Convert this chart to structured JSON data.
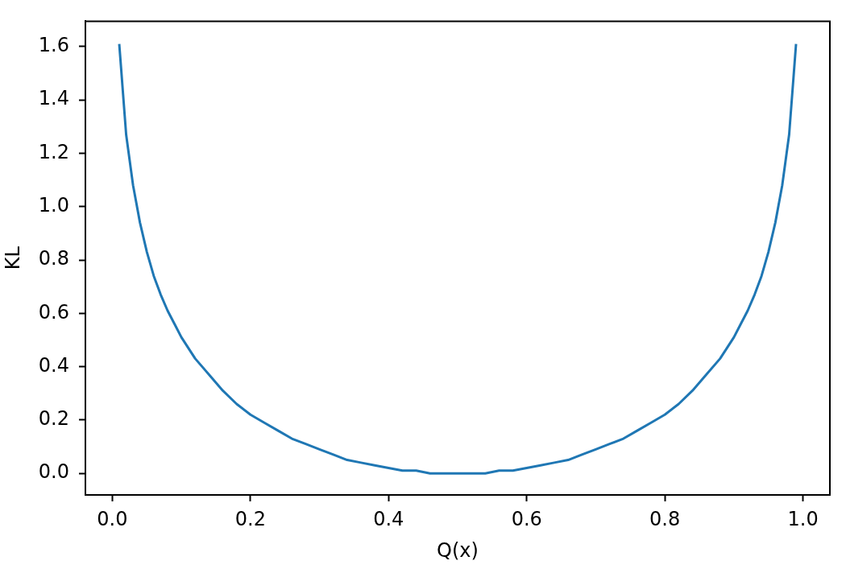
{
  "chart_data": {
    "type": "line",
    "xlabel": "Q(x)",
    "ylabel": "KL",
    "x": [
      0.01,
      0.02,
      0.03,
      0.04,
      0.05,
      0.06,
      0.07,
      0.08,
      0.09,
      0.1,
      0.12,
      0.14,
      0.16,
      0.18,
      0.2,
      0.22,
      0.24,
      0.26,
      0.28,
      0.3,
      0.32,
      0.34,
      0.36,
      0.38,
      0.4,
      0.42,
      0.44,
      0.46,
      0.48,
      0.5,
      0.52,
      0.54,
      0.56,
      0.58,
      0.6,
      0.62,
      0.64,
      0.66,
      0.68,
      0.7,
      0.72,
      0.74,
      0.76,
      0.78,
      0.8,
      0.82,
      0.84,
      0.86,
      0.88,
      0.9,
      0.91,
      0.92,
      0.93,
      0.94,
      0.95,
      0.96,
      0.97,
      0.98,
      0.99
    ],
    "series": [
      {
        "color": "#1f77b4",
        "values": [
          1.61,
          1.27,
          1.08,
          0.94,
          0.83,
          0.74,
          0.67,
          0.61,
          0.56,
          0.51,
          0.43,
          0.37,
          0.31,
          0.26,
          0.22,
          0.19,
          0.16,
          0.13,
          0.11,
          0.09,
          0.07,
          0.05,
          0.04,
          0.03,
          0.02,
          0.01,
          0.01,
          0,
          0,
          0,
          0,
          0,
          0.01,
          0.01,
          0.02,
          0.03,
          0.04,
          0.05,
          0.07,
          0.09,
          0.11,
          0.13,
          0.16,
          0.19,
          0.22,
          0.26,
          0.31,
          0.37,
          0.43,
          0.51,
          0.56,
          0.61,
          0.67,
          0.74,
          0.83,
          0.94,
          1.08,
          1.27,
          1.61
        ]
      }
    ],
    "xlim": [
      -0.039,
      1.039
    ],
    "ylim": [
      -0.081,
      1.695
    ],
    "xticks": [
      {
        "value": 0,
        "label": "0.0"
      },
      0.2,
      0.4,
      0.6,
      0.8,
      {
        "value": 1,
        "label": "1.0"
      }
    ],
    "yticks": [
      {
        "value": 0,
        "label": "0.0"
      },
      0.2,
      0.4,
      0.6,
      0.8,
      {
        "value": 1,
        "label": "1.0"
      },
      1.2,
      1.4,
      1.6
    ],
    "marker": "none",
    "line_style": "solid"
  }
}
